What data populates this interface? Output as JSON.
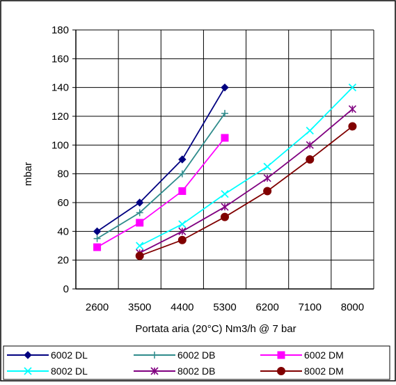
{
  "chart_data": {
    "type": "line",
    "title": "",
    "xlabel": "Portata aria (20°C) Nm3/h @ 7 bar",
    "ylabel": "mbar",
    "categories": [
      "2600",
      "3500",
      "4400",
      "5300",
      "6200",
      "7100",
      "8000"
    ],
    "ylim": [
      0,
      180
    ],
    "yticks": [
      0,
      20,
      40,
      60,
      80,
      100,
      120,
      140,
      160,
      180
    ],
    "grid": true,
    "legend_position": "bottom",
    "series": [
      {
        "name": "6002 DL",
        "color": "#000080",
        "marker": "diamond",
        "values": [
          40,
          60,
          90,
          140,
          null,
          null,
          null
        ]
      },
      {
        "name": "6002 DB",
        "color": "#2E8B8B",
        "marker": "plus",
        "values": [
          35,
          53,
          80,
          122,
          null,
          null,
          null
        ]
      },
      {
        "name": "6002 DM",
        "color": "#FF00FF",
        "marker": "square",
        "values": [
          29,
          46,
          68,
          105,
          null,
          null,
          null
        ]
      },
      {
        "name": "8002 DL",
        "color": "#00FFFF",
        "marker": "x",
        "values": [
          null,
          30,
          45,
          66,
          85,
          110,
          140
        ]
      },
      {
        "name": "8002 DB",
        "color": "#800080",
        "marker": "asterisk",
        "values": [
          null,
          25,
          40,
          57,
          77,
          100,
          125
        ]
      },
      {
        "name": "8002 DM",
        "color": "#800000",
        "marker": "circle",
        "values": [
          null,
          23,
          34,
          50,
          68,
          90,
          113
        ]
      }
    ]
  }
}
